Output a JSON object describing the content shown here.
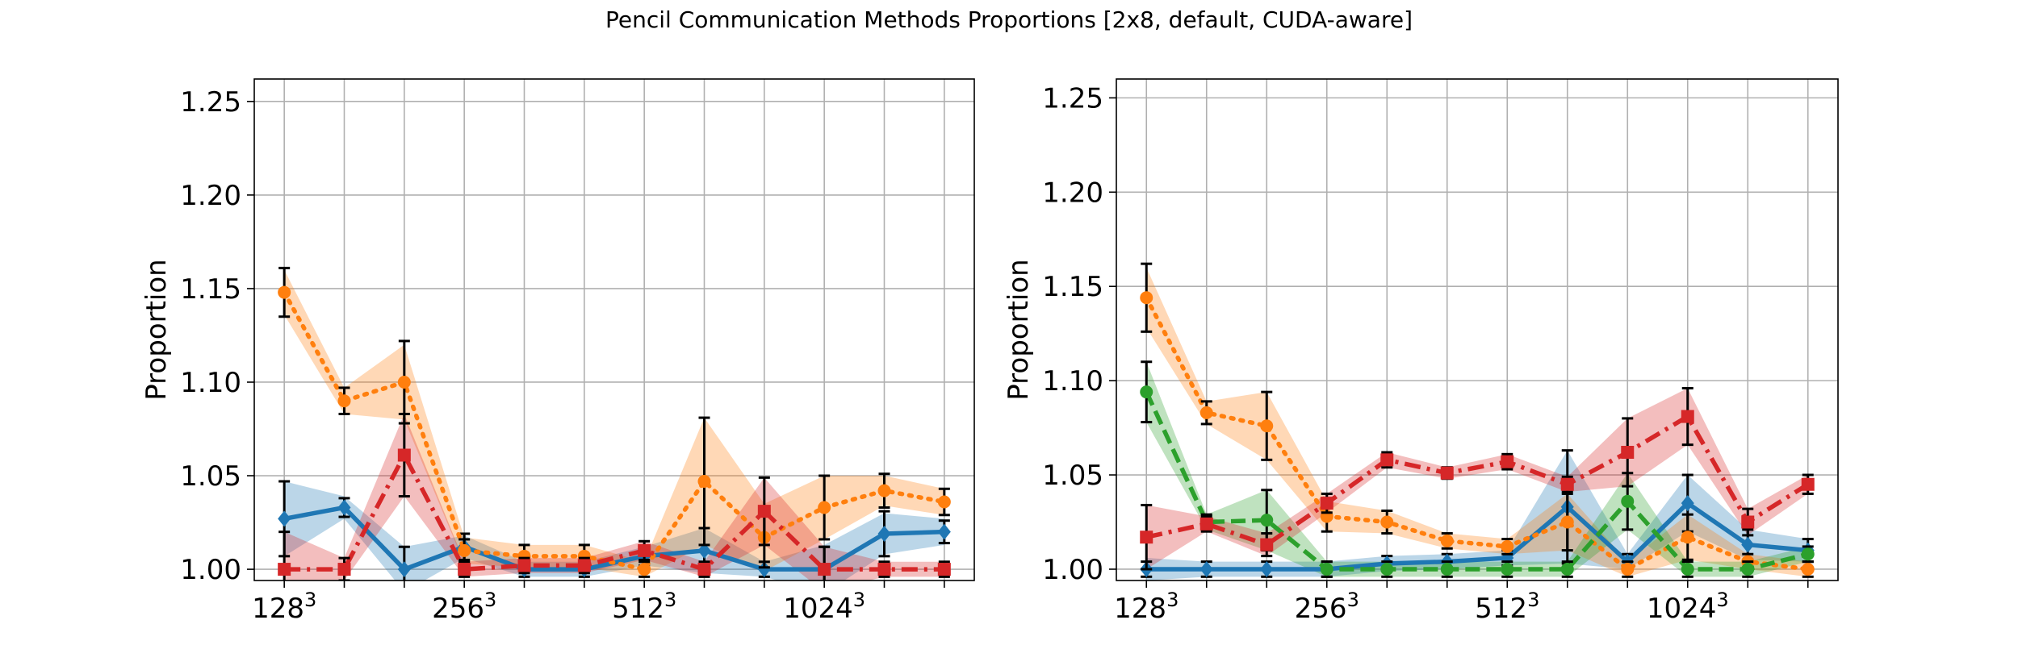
{
  "figure": {
    "title": "Pencil Communication Methods Proportions [2x8, default, CUDA-aware]"
  },
  "colors": {
    "blue": "#1f77b4",
    "orange": "#ff7f0e",
    "green": "#2ca02c",
    "red": "#d62728",
    "errorbar": "#000000",
    "grid": "#b0b0b0"
  },
  "chart_data": [
    {
      "type": "line",
      "title": "",
      "xlabel": "",
      "ylabel": "Proportion",
      "ylim": [
        0.994,
        1.262
      ],
      "yticks": [
        "1.00",
        "1.05",
        "1.10",
        "1.15",
        "1.20",
        "1.25"
      ],
      "ytick_values": [
        1.0,
        1.05,
        1.1,
        1.15,
        1.2,
        1.25
      ],
      "x_positions": [
        0,
        1,
        2,
        3,
        4,
        5,
        6,
        7,
        8,
        9,
        10,
        11
      ],
      "xlim": [
        -0.5,
        11.5
      ],
      "xtick_labels": [
        {
          "x": 0,
          "base": "128",
          "exp": "3"
        },
        {
          "x": 3,
          "base": "256",
          "exp": "3"
        },
        {
          "x": 6,
          "base": "512",
          "exp": "3"
        },
        {
          "x": 9,
          "base": "1024",
          "exp": "3"
        }
      ],
      "grid": true,
      "series": [
        {
          "color": "blue",
          "style": "solid",
          "marker": "diamond",
          "values": [
            1.027,
            1.033,
            1.0,
            1.012,
            1.0,
            1.0,
            1.007,
            1.01,
            1.0,
            1.0,
            1.019,
            1.02
          ],
          "err": [
            0.02,
            0.005,
            0.012,
            0.007,
            0.004,
            0.004,
            0.005,
            0.012,
            0.004,
            0.012,
            0.012,
            0.006
          ],
          "band": [
            0.02,
            0.006,
            0.012,
            0.006,
            0.004,
            0.004,
            0.005,
            0.012,
            0.004,
            0.013,
            0.011,
            0.007
          ]
        },
        {
          "color": "orange",
          "style": "dotted",
          "marker": "circle",
          "values": [
            1.148,
            1.09,
            1.1,
            1.01,
            1.007,
            1.007,
            1.0,
            1.047,
            1.017,
            1.033,
            1.042,
            1.036
          ],
          "err": [
            0.013,
            0.007,
            0.022,
            0.006,
            0.006,
            0.006,
            0.004,
            0.034,
            0.016,
            0.017,
            0.009,
            0.007
          ],
          "band": [
            0.012,
            0.007,
            0.02,
            0.007,
            0.006,
            0.006,
            0.004,
            0.034,
            0.018,
            0.017,
            0.008,
            0.007
          ]
        },
        {
          "color": "red",
          "style": "dashdot",
          "marker": "square",
          "values": [
            1.0,
            1.0,
            1.061,
            1.0,
            1.002,
            1.002,
            1.01,
            1.0,
            1.031,
            1.0,
            1.0,
            1.0
          ],
          "err": [
            0.02,
            0.006,
            0.022,
            0.004,
            0.004,
            0.004,
            0.005,
            0.004,
            0.018,
            0.012,
            0.004,
            0.004
          ],
          "band": [
            0.02,
            0.006,
            0.022,
            0.004,
            0.004,
            0.004,
            0.005,
            0.004,
            0.018,
            0.012,
            0.004,
            0.004
          ]
        }
      ]
    },
    {
      "type": "line",
      "title": "",
      "xlabel": "",
      "ylabel": "Proportion",
      "ylim": [
        0.994,
        1.26
      ],
      "yticks": [
        "1.00",
        "1.05",
        "1.10",
        "1.15",
        "1.20",
        "1.25"
      ],
      "ytick_values": [
        1.0,
        1.05,
        1.1,
        1.15,
        1.2,
        1.25
      ],
      "x_positions": [
        0,
        1,
        2,
        3,
        4,
        5,
        6,
        7,
        8,
        9,
        10,
        11
      ],
      "xlim": [
        -0.5,
        11.5
      ],
      "xtick_labels": [
        {
          "x": 0,
          "base": "128",
          "exp": "3"
        },
        {
          "x": 3,
          "base": "256",
          "exp": "3"
        },
        {
          "x": 6,
          "base": "512",
          "exp": "3"
        },
        {
          "x": 9,
          "base": "1024",
          "exp": "3"
        }
      ],
      "grid": true,
      "series": [
        {
          "color": "blue",
          "style": "solid",
          "marker": "diamond",
          "values": [
            1.0,
            1.0,
            1.0,
            1.0,
            1.003,
            1.004,
            1.006,
            1.033,
            1.004,
            1.035,
            1.013,
            1.01
          ],
          "err": [
            0.004,
            0.004,
            0.004,
            0.004,
            0.004,
            0.004,
            0.004,
            0.03,
            0.004,
            0.015,
            0.008,
            0.006
          ],
          "band": [
            0.006,
            0.004,
            0.004,
            0.004,
            0.004,
            0.004,
            0.004,
            0.03,
            0.004,
            0.015,
            0.008,
            0.006
          ]
        },
        {
          "color": "orange",
          "style": "dotted",
          "marker": "circle",
          "values": [
            1.144,
            1.083,
            1.076,
            1.028,
            1.025,
            1.015,
            1.012,
            1.025,
            1.0,
            1.017,
            1.004,
            1.0
          ],
          "err": [
            0.018,
            0.006,
            0.018,
            0.008,
            0.006,
            0.004,
            0.004,
            0.015,
            0.004,
            0.012,
            0.004,
            0.004
          ],
          "band": [
            0.016,
            0.006,
            0.018,
            0.008,
            0.006,
            0.004,
            0.004,
            0.015,
            0.004,
            0.012,
            0.004,
            0.004
          ]
        },
        {
          "color": "green",
          "style": "dashed",
          "marker": "circle",
          "values": [
            1.094,
            1.025,
            1.026,
            1.0,
            1.0,
            1.0,
            1.0,
            1.0,
            1.036,
            1.0,
            1.0,
            1.008
          ],
          "err": [
            0.016,
            0.004,
            0.016,
            0.004,
            0.004,
            0.004,
            0.004,
            0.004,
            0.015,
            0.004,
            0.004,
            0.004
          ],
          "band": [
            0.016,
            0.004,
            0.016,
            0.004,
            0.004,
            0.004,
            0.004,
            0.004,
            0.015,
            0.004,
            0.004,
            0.004
          ]
        },
        {
          "color": "red",
          "style": "dashdot",
          "marker": "square",
          "values": [
            1.017,
            1.024,
            1.013,
            1.035,
            1.058,
            1.051,
            1.057,
            1.045,
            1.062,
            1.081,
            1.025,
            1.045
          ],
          "err": [
            0.017,
            0.004,
            0.006,
            0.005,
            0.004,
            0.003,
            0.004,
            0.004,
            0.018,
            0.015,
            0.007,
            0.005
          ],
          "band": [
            0.017,
            0.004,
            0.006,
            0.005,
            0.004,
            0.003,
            0.004,
            0.004,
            0.018,
            0.015,
            0.007,
            0.005
          ]
        }
      ]
    }
  ]
}
